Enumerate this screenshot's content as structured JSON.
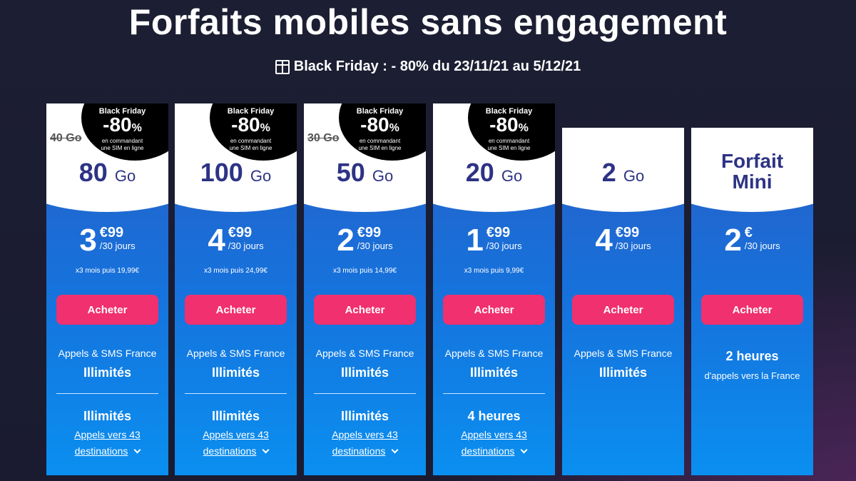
{
  "title": "Forfaits mobiles sans engagement",
  "promo": "Black Friday : - 80% du 23/11/21 au 5/12/21",
  "badge": {
    "line1": "Black Friday",
    "pct": "-80",
    "pct_sign": "%",
    "line3": "en commandant",
    "line4": "une SIM en ligne"
  },
  "plans": [
    {
      "old": "40 Go",
      "data": "80",
      "unit": "Go",
      "price": "3",
      "cents": "€99",
      "per": "/30 jours",
      "note": "x3 mois puis 19,99€",
      "button": "Acheter",
      "calls": "Appels & SMS France",
      "calls_value": "Illimités",
      "intl": "Illimités",
      "link1": "Appels vers 43",
      "link2": "destinations",
      "badge": true
    },
    {
      "old": "",
      "data": "100",
      "unit": "Go",
      "price": "4",
      "cents": "€99",
      "per": "/30 jours",
      "note": "x3 mois puis 24,99€",
      "button": "Acheter",
      "calls": "Appels & SMS France",
      "calls_value": "Illimités",
      "intl": "Illimités",
      "link1": "Appels vers 43",
      "link2": "destinations",
      "badge": true
    },
    {
      "old": "30 Go",
      "data": "50",
      "unit": "Go",
      "price": "2",
      "cents": "€99",
      "per": "/30 jours",
      "note": "x3 mois puis 14,99€",
      "button": "Acheter",
      "calls": "Appels & SMS France",
      "calls_value": "Illimités",
      "intl": "Illimités",
      "link1": "Appels vers 43",
      "link2": "destinations",
      "badge": true
    },
    {
      "old": "",
      "data": "20",
      "unit": "Go",
      "price": "1",
      "cents": "€99",
      "per": "/30 jours",
      "note": "x3 mois puis 9,99€",
      "button": "Acheter",
      "calls": "Appels & SMS France",
      "calls_value": "Illimités",
      "intl": "4 heures",
      "link1": "Appels vers 43",
      "link2": "destinations",
      "badge": true
    },
    {
      "old": "",
      "data": "2",
      "unit": "Go",
      "price": "4",
      "cents": "€99",
      "per": "/30 jours",
      "note": "",
      "button": "Acheter",
      "calls": "Appels & SMS France",
      "calls_value": "Illimités",
      "badge": false
    },
    {
      "mini1": "Forfait",
      "mini2": "Mini",
      "price": "2",
      "cents": "€",
      "per": "/30 jours",
      "note": "",
      "button": "Acheter",
      "hours": "2 heures",
      "hours_sub": "d'appels vers la France",
      "badge": false
    }
  ]
}
